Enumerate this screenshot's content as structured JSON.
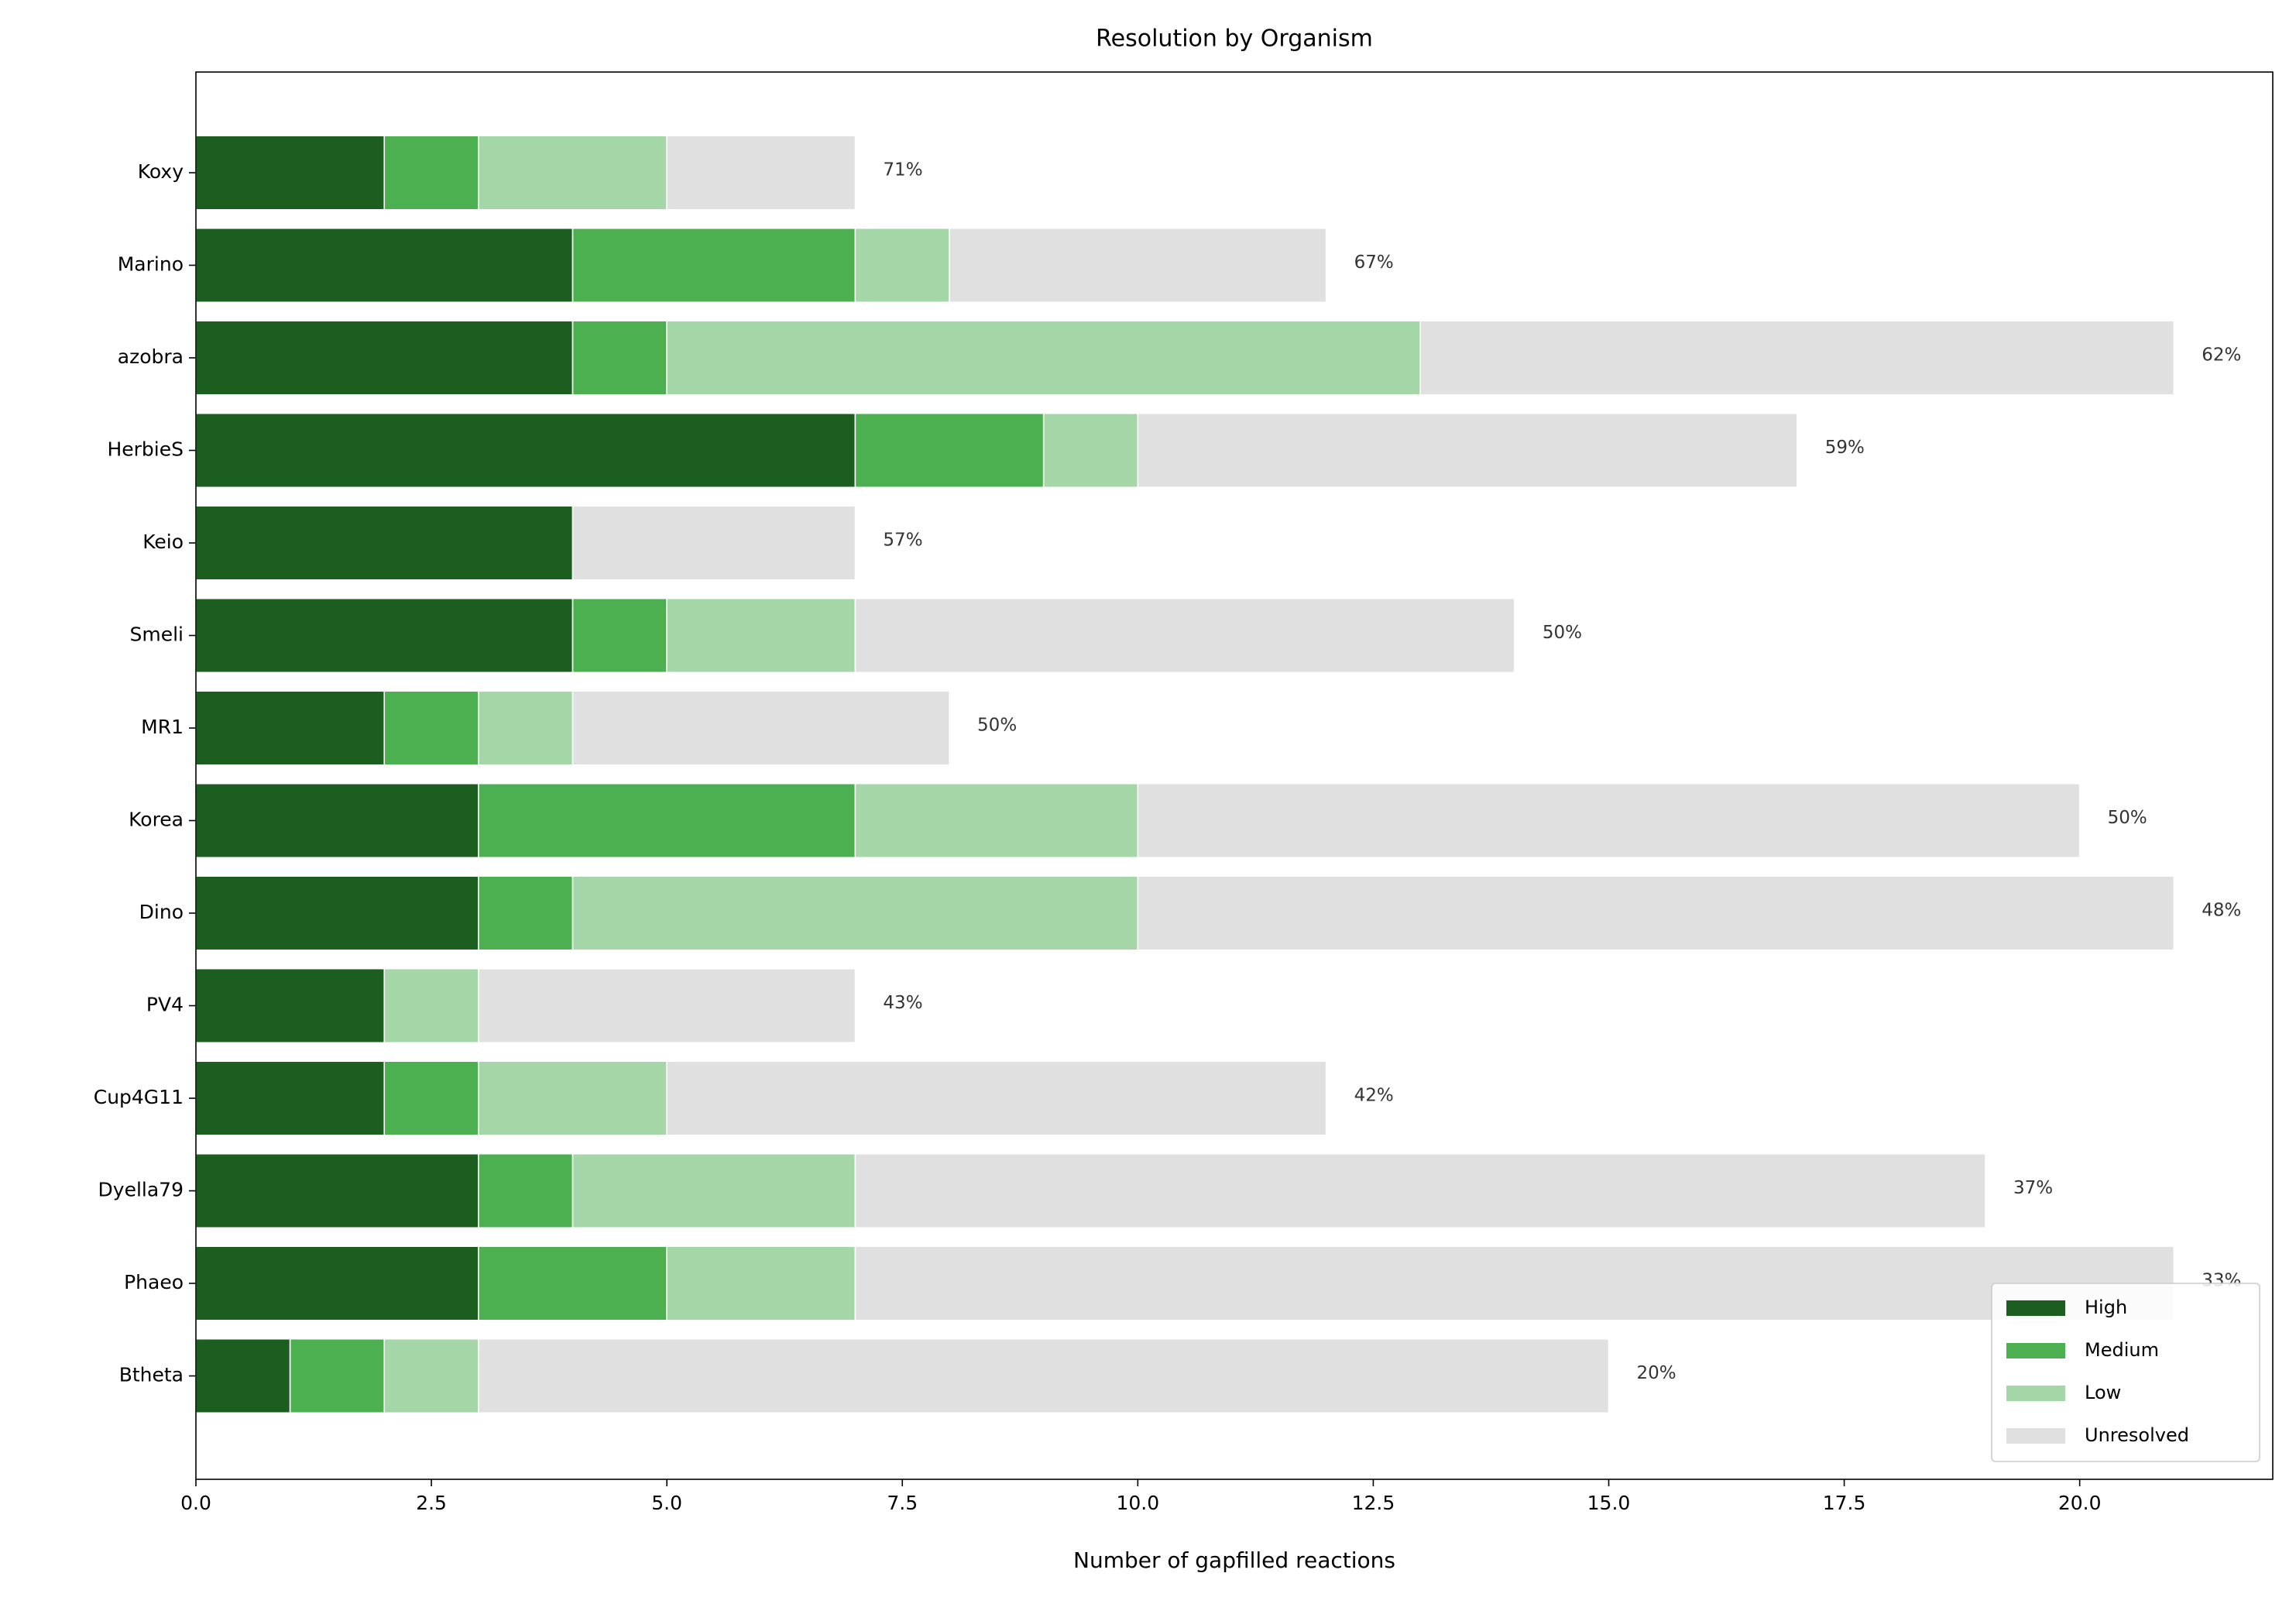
{
  "chart_data": {
    "type": "stacked_barh",
    "title": "Resolution by Organism",
    "x_label": "Number of gapfilled reactions",
    "categories": [
      "Koxy",
      "Marino",
      "azobra",
      "HerbieS",
      "Keio",
      "Smeli",
      "MR1",
      "Korea",
      "Dino",
      "PV4",
      "Cup4G11",
      "Dyella79",
      "Phaeo",
      "Btheta"
    ],
    "series": [
      {
        "name": "High",
        "color": "#1b5e20",
        "values": [
          2,
          4,
          4,
          7,
          4,
          4,
          2,
          3,
          3,
          2,
          2,
          3,
          3,
          1
        ]
      },
      {
        "name": "Medium",
        "color": "#4caf50",
        "values": [
          1,
          3,
          1,
          2,
          0,
          1,
          1,
          4,
          1,
          0,
          1,
          1,
          2,
          1
        ]
      },
      {
        "name": "Low",
        "color": "#a5d6a7",
        "values": [
          2,
          1,
          8,
          1,
          0,
          2,
          1,
          3,
          6,
          1,
          2,
          3,
          2,
          1
        ]
      },
      {
        "name": "Unresolved",
        "color": "#e0e0e0",
        "values": [
          2,
          4,
          8,
          7,
          3,
          7,
          4,
          10,
          11,
          4,
          7,
          12,
          14,
          12
        ]
      }
    ],
    "percent_labels": [
      "71%",
      "67%",
      "62%",
      "59%",
      "57%",
      "50%",
      "50%",
      "50%",
      "48%",
      "43%",
      "42%",
      "37%",
      "33%",
      "20%"
    ],
    "xlim": [
      0,
      22.05
    ],
    "xticks": [
      {
        "value": 0,
        "label": "0.0"
      },
      {
        "value": 2.5,
        "label": "2.5"
      },
      {
        "value": 5,
        "label": "5.0"
      },
      {
        "value": 7.5,
        "label": "7.5"
      },
      {
        "value": 10,
        "label": "10.0"
      },
      {
        "value": 12.5,
        "label": "12.5"
      },
      {
        "value": 15,
        "label": "15.0"
      },
      {
        "value": 17.5,
        "label": "17.5"
      },
      {
        "value": 20,
        "label": "20.0"
      }
    ],
    "legend_position": "lower right"
  }
}
